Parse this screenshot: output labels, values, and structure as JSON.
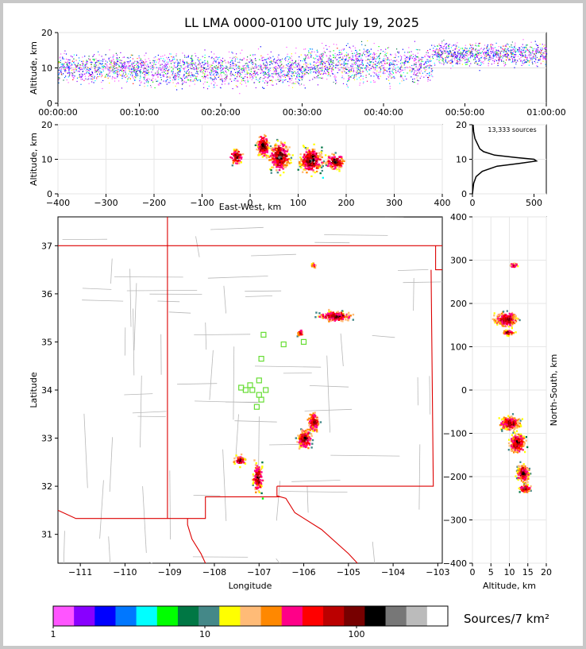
{
  "title": "LL LMA 0000-0100 UTC July 19, 2025",
  "sources_label": "13,333 sources",
  "colorbar_label": "Sources/7 km²",
  "chart_data": [
    {
      "panel": "time-altitude",
      "type": "scatter",
      "ylabel": "Altitude, km",
      "ylim": [
        0,
        20
      ],
      "yticks": [
        "0",
        "10",
        "20"
      ],
      "xticks": [
        "00:00:00",
        "00:10:00",
        "00:20:00",
        "00:30:00",
        "00:40:00",
        "00:50:00",
        "01:00:00"
      ],
      "x_minutes": [
        0,
        60
      ],
      "grid": true,
      "series": [
        {
          "t0": 0,
          "t1": 10,
          "alt_center": 10,
          "alt_spread": 4
        },
        {
          "t0": 10,
          "t1": 30,
          "alt_center": 9.5,
          "alt_spread": 4.5
        },
        {
          "t0": 30,
          "t1": 46,
          "alt_center": 11,
          "alt_spread": 5
        },
        {
          "t0": 46,
          "t1": 60,
          "alt_center": 14,
          "alt_spread": 3
        }
      ]
    },
    {
      "panel": "east-west-altitude",
      "type": "heatmap",
      "xlabel": "East-West, km",
      "ylabel": "Altitude, km",
      "xlim": [
        -400,
        400
      ],
      "ylim": [
        0,
        20
      ],
      "xticks": [
        "−400",
        "−300",
        "−200",
        "−100",
        "0",
        "100",
        "200",
        "300",
        "400"
      ],
      "yticks": [
        "0",
        "10",
        "20"
      ],
      "grid": true,
      "clusters": [
        {
          "x": -30,
          "alt": 11,
          "sx": 12,
          "sa": 2
        },
        {
          "x": 25,
          "alt": 14,
          "sx": 12,
          "sa": 3
        },
        {
          "x": 125,
          "alt": 10,
          "sx": 22,
          "sa": 3.5
        },
        {
          "x": 175,
          "alt": 9.5,
          "sx": 18,
          "sa": 2
        },
        {
          "x": 60,
          "alt": 11,
          "sx": 20,
          "sa": 4
        }
      ]
    },
    {
      "panel": "altitude-histogram",
      "type": "line",
      "xlim": [
        0,
        600
      ],
      "ylim": [
        0,
        20
      ],
      "xticks": [
        "0",
        "500"
      ],
      "yticks": [
        "0",
        "10",
        "20"
      ],
      "points": [
        [
          0,
          0
        ],
        [
          10,
          3
        ],
        [
          30,
          5
        ],
        [
          80,
          6.5
        ],
        [
          200,
          8
        ],
        [
          380,
          8.8
        ],
        [
          520,
          9.5
        ],
        [
          500,
          10
        ],
        [
          350,
          10.5
        ],
        [
          180,
          11.2
        ],
        [
          90,
          12.2
        ],
        [
          60,
          13
        ],
        [
          40,
          14.5
        ],
        [
          20,
          16
        ],
        [
          10,
          18
        ],
        [
          5,
          20
        ]
      ]
    },
    {
      "panel": "plan-view",
      "type": "heatmap",
      "xlabel": "Longitude",
      "ylabel": "Latitude",
      "xlim": [
        -111.5,
        -102.9
      ],
      "ylim": [
        30.4,
        37.6
      ],
      "xticks": [
        "−111",
        "−110",
        "−109",
        "−108",
        "−107",
        "−106",
        "−105",
        "−104",
        "−103"
      ],
      "yticks": [
        "31",
        "32",
        "33",
        "34",
        "35",
        "36",
        "37"
      ],
      "clusters": [
        {
          "lon": -105.3,
          "lat": 35.55,
          "slon": 0.35,
          "slat": 0.1
        },
        {
          "lon": -105.8,
          "lat": 33.35,
          "slon": 0.12,
          "slat": 0.18
        },
        {
          "lon": -106.0,
          "lat": 33.0,
          "slon": 0.15,
          "slat": 0.2
        },
        {
          "lon": -107.05,
          "lat": 32.2,
          "slon": 0.1,
          "slat": 0.3
        },
        {
          "lon": -107.45,
          "lat": 32.55,
          "slon": 0.12,
          "slat": 0.1
        },
        {
          "lon": -106.1,
          "lat": 35.2,
          "slon": 0.05,
          "slat": 0.08
        },
        {
          "lon": -105.8,
          "lat": 36.6,
          "slon": 0.05,
          "slat": 0.05
        }
      ],
      "stations": [
        [
          -106.9,
          35.15
        ],
        [
          -106.45,
          34.95
        ],
        [
          -106.0,
          35.0
        ],
        [
          -106.95,
          34.65
        ],
        [
          -107.0,
          34.2
        ],
        [
          -107.2,
          34.1
        ],
        [
          -107.4,
          34.05
        ],
        [
          -107.3,
          34.0
        ],
        [
          -107.15,
          34.0
        ],
        [
          -106.85,
          34.0
        ],
        [
          -107.0,
          33.9
        ],
        [
          -106.95,
          33.8
        ],
        [
          -107.05,
          33.65
        ]
      ]
    },
    {
      "panel": "altitude-north-south",
      "type": "heatmap",
      "xlabel": "Altitude, km",
      "ylabel": "North-South, km",
      "xlim": [
        0,
        20
      ],
      "ylim": [
        -400,
        400
      ],
      "xticks": [
        "0",
        "5",
        "10",
        "15",
        "20"
      ],
      "yticks": [
        "−400",
        "−300",
        "−200",
        "−100",
        "0",
        "100",
        "200",
        "300",
        "400"
      ],
      "grid": true,
      "clusters": [
        {
          "alt": 9,
          "ns": 165,
          "sa": 3,
          "sns": 15
        },
        {
          "alt": 9.5,
          "ns": 135,
          "sa": 1.5,
          "sns": 6
        },
        {
          "alt": 10,
          "ns": -75,
          "sa": 2.5,
          "sns": 15
        },
        {
          "alt": 12,
          "ns": -120,
          "sa": 2,
          "sns": 20
        },
        {
          "alt": 13.5,
          "ns": -190,
          "sa": 1.5,
          "sns": 20
        },
        {
          "alt": 14,
          "ns": -225,
          "sa": 1.5,
          "sns": 8
        },
        {
          "alt": 11,
          "ns": 290,
          "sa": 1,
          "sns": 4
        }
      ]
    }
  ],
  "colorbar": {
    "colors": [
      "#ff55ff",
      "#8800ff",
      "#0000ff",
      "#0077ff",
      "#00ffff",
      "#00ff00",
      "#007744",
      "#448888",
      "#ffff00",
      "#ffbb77",
      "#ff8800",
      "#ff0088",
      "#ff0000",
      "#bb0000",
      "#770000",
      "#000000",
      "#777777",
      "#bbbbbb",
      "#ffffff"
    ],
    "ticks": [
      "1",
      "10",
      "100"
    ],
    "tick_values": [
      1,
      10,
      100
    ]
  }
}
